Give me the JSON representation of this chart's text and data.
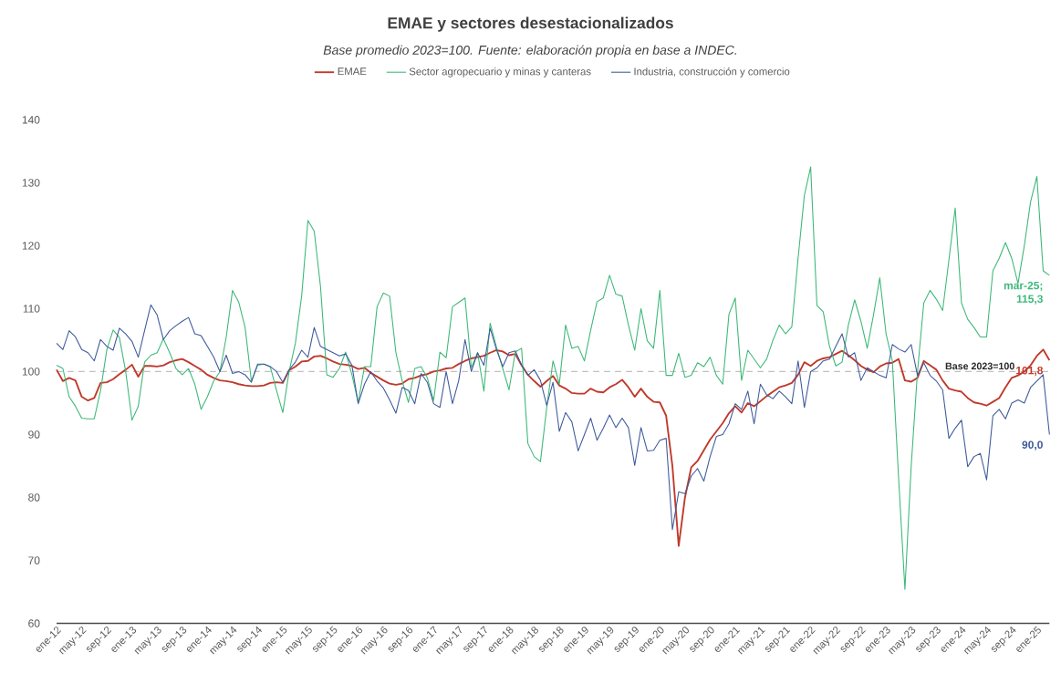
{
  "chart_data": {
    "type": "line",
    "title": "EMAE y sectores desestacionalizados",
    "subtitle": "Base promedio 2023=100. Fuente: elaboración propia en base a INDEC.",
    "categories": [
      "ene-12",
      null,
      null,
      null,
      "may-12",
      null,
      null,
      null,
      "sep-12",
      null,
      null,
      null,
      "ene-13",
      null,
      null,
      null,
      "may-13",
      null,
      null,
      null,
      "sep-13",
      null,
      null,
      null,
      "ene-14",
      null,
      null,
      null,
      "may-14",
      null,
      null,
      null,
      "sep-14",
      null,
      null,
      null,
      "ene-15",
      null,
      null,
      null,
      "may-15",
      null,
      null,
      null,
      "sep-15",
      null,
      null,
      null,
      "ene-16",
      null,
      null,
      null,
      "may-16",
      null,
      null,
      null,
      "sep-16",
      null,
      null,
      null,
      "ene-17",
      null,
      null,
      null,
      "may-17",
      null,
      null,
      null,
      "sep-17",
      null,
      null,
      null,
      "ene-18",
      null,
      null,
      null,
      "may-18",
      null,
      null,
      null,
      "sep-18",
      null,
      null,
      null,
      "ene-19",
      null,
      null,
      null,
      "may-19",
      null,
      null,
      null,
      "sep-19",
      null,
      null,
      null,
      "ene-20",
      null,
      null,
      null,
      "may-20",
      null,
      null,
      null,
      "sep-20",
      null,
      null,
      null,
      "ene-21",
      null,
      null,
      null,
      "may-21",
      null,
      null,
      null,
      "sep-21",
      null,
      null,
      null,
      "ene-22",
      null,
      null,
      null,
      "may-22",
      null,
      null,
      null,
      "sep-22",
      null,
      null,
      null,
      "ene-23",
      null,
      null,
      null,
      "may-23",
      null,
      null,
      null,
      "sep-23",
      null,
      null,
      null,
      "ene-24",
      null,
      null,
      null,
      "may-24",
      null,
      null,
      null,
      "sep-24",
      null,
      null,
      null,
      "ene-25",
      null,
      null
    ],
    "series": [
      {
        "name": "EMAE",
        "color": "#c0392b",
        "values": [
          100.3,
          98.5,
          99.0,
          98.6,
          96.0,
          95.4,
          95.8,
          98.2,
          98.3,
          98.8,
          99.6,
          100.3,
          101.1,
          99.2,
          100.9,
          100.9,
          100.8,
          101.0,
          101.5,
          101.8,
          102.0,
          101.5,
          100.9,
          100.3,
          99.5,
          99.0,
          98.6,
          98.5,
          98.3,
          98.0,
          97.8,
          97.7,
          97.7,
          97.8,
          98.2,
          98.3,
          98.2,
          100.2,
          100.8,
          101.6,
          101.7,
          102.4,
          102.5,
          102.1,
          101.6,
          101.2,
          101.1,
          100.9,
          100.4,
          100.6,
          99.8,
          99.2,
          98.6,
          98.1,
          97.9,
          98.1,
          98.8,
          99.0,
          99.4,
          99.6,
          100.0,
          100.2,
          100.5,
          100.6,
          101.2,
          101.7,
          102.1,
          102.3,
          102.5,
          103.0,
          103.4,
          103.2,
          102.6,
          102.8,
          101.0,
          99.5,
          98.5,
          97.6,
          98.5,
          99.3,
          97.8,
          97.3,
          96.6,
          96.5,
          96.5,
          97.3,
          96.8,
          96.7,
          97.5,
          98.0,
          98.7,
          97.5,
          96.0,
          97.3,
          96.0,
          95.2,
          95.1,
          93.0,
          85.0,
          72.3,
          80.0,
          84.8,
          85.8,
          87.5,
          89.2,
          90.5,
          91.8,
          93.4,
          94.5,
          93.5,
          95.0,
          94.5,
          95.3,
          96.1,
          96.8,
          97.5,
          97.8,
          98.2,
          99.5,
          101.5,
          100.9,
          101.7,
          102.1,
          102.3,
          102.8,
          103.3,
          102.6,
          101.8,
          100.9,
          100.3,
          99.9,
          100.8,
          101.3,
          101.4,
          102.0,
          98.6,
          98.4,
          99.0,
          101.7,
          101.0,
          100.3,
          98.6,
          97.3,
          97.0,
          96.8,
          95.8,
          95.1,
          94.9,
          94.6,
          95.2,
          95.8,
          97.5,
          99.0,
          99.4,
          100.0,
          101.0,
          102.5,
          103.5,
          101.8
        ],
        "value_labels": [
          null,
          null,
          null,
          null,
          null,
          null,
          null,
          null,
          null,
          null,
          null,
          null,
          null,
          null,
          null,
          null,
          null,
          null,
          null,
          null,
          null,
          null,
          null,
          null,
          null,
          null,
          null,
          null,
          null,
          null,
          null,
          null,
          null,
          null,
          null,
          null,
          null,
          null,
          null,
          null,
          null,
          null,
          null,
          null,
          null,
          null,
          null,
          null,
          null,
          null,
          null,
          null,
          null,
          null,
          null,
          null,
          null,
          null,
          null,
          null,
          null,
          null,
          null,
          null,
          null,
          null,
          null,
          null,
          null,
          null,
          null,
          null,
          null,
          null,
          null,
          null,
          null,
          null,
          null,
          null,
          null,
          null,
          null,
          null,
          null,
          null,
          null,
          null,
          null,
          null,
          null,
          null,
          null,
          null,
          null,
          null,
          null,
          null,
          null,
          null,
          null,
          null,
          null,
          null,
          null,
          null,
          null,
          null,
          null,
          null,
          null,
          null,
          null,
          null,
          null,
          null,
          null,
          null,
          null,
          null,
          null,
          null,
          null,
          null,
          null,
          null,
          null,
          null,
          null,
          null,
          null,
          null,
          null,
          null,
          null,
          null,
          null,
          null,
          null,
          null,
          null,
          null,
          null,
          null,
          null,
          null,
          null,
          null,
          null,
          null,
          null,
          null,
          null,
          null,
          null,
          null,
          null,
          null,
          "101,8"
        ]
      },
      {
        "name": "Sector agropecuario y minas y canteras",
        "color": "#3cb878",
        "values": [
          101.0,
          100.5,
          96.0,
          94.5,
          92.6,
          92.5,
          92.5,
          97.0,
          103.5,
          106.6,
          105.4,
          100.0,
          92.3,
          94.5,
          101.5,
          102.6,
          103.0,
          105.2,
          103.0,
          100.5,
          99.5,
          100.5,
          98.0,
          94.0,
          96.0,
          98.5,
          100.0,
          105.5,
          112.9,
          111.0,
          107.0,
          98.5,
          101.0,
          101.2,
          100.8,
          97.0,
          93.5,
          100.0,
          104.5,
          112.0,
          124.0,
          122.3,
          113.5,
          99.5,
          99.1,
          100.5,
          103.1,
          99.5,
          95.1,
          100.8,
          100.8,
          110.3,
          112.5,
          112.0,
          103.0,
          98.5,
          95.1,
          100.5,
          100.8,
          99.0,
          95.4,
          103.1,
          102.2,
          110.3,
          111.0,
          111.7,
          100.6,
          103.0,
          96.9,
          107.7,
          103.9,
          100.5,
          97.1,
          103.1,
          103.7,
          88.6,
          86.5,
          85.7,
          94.3,
          101.7,
          98.0,
          107.4,
          103.7,
          104.0,
          101.7,
          106.6,
          111.1,
          111.7,
          115.3,
          112.3,
          112.0,
          107.4,
          103.4,
          110.0,
          104.9,
          103.7,
          112.9,
          99.4,
          99.4,
          102.9,
          99.1,
          99.4,
          101.4,
          100.8,
          102.3,
          99.4,
          98.0,
          109.1,
          111.7,
          98.6,
          103.4,
          102.0,
          100.6,
          102.0,
          105.0,
          107.4,
          106.0,
          107.1,
          118.0,
          128.0,
          132.5,
          110.5,
          109.5,
          104.0,
          100.9,
          101.5,
          107.4,
          111.4,
          108.0,
          103.7,
          109.0,
          114.9,
          106.0,
          101.7,
          83.0,
          65.4,
          85.0,
          100.0,
          110.9,
          112.9,
          111.5,
          109.7,
          117.7,
          126.0,
          110.9,
          108.3,
          107.0,
          105.5,
          105.5,
          116.0,
          118.0,
          120.5,
          118.0,
          114.0,
          120.0,
          127.0,
          131.0,
          116.0,
          115.3
        ],
        "value_labels": [
          null,
          null,
          null,
          null,
          null,
          null,
          null,
          null,
          null,
          null,
          null,
          null,
          null,
          null,
          null,
          null,
          null,
          null,
          null,
          null,
          null,
          null,
          null,
          null,
          null,
          null,
          null,
          null,
          null,
          null,
          null,
          null,
          null,
          null,
          null,
          null,
          null,
          null,
          null,
          null,
          null,
          null,
          null,
          null,
          null,
          null,
          null,
          null,
          null,
          null,
          null,
          null,
          null,
          null,
          null,
          null,
          null,
          null,
          null,
          null,
          null,
          null,
          null,
          null,
          null,
          null,
          null,
          null,
          null,
          null,
          null,
          null,
          null,
          null,
          null,
          null,
          null,
          null,
          null,
          null,
          null,
          null,
          null,
          null,
          null,
          null,
          null,
          null,
          null,
          null,
          null,
          null,
          null,
          null,
          null,
          null,
          null,
          null,
          null,
          null,
          null,
          null,
          null,
          null,
          null,
          null,
          null,
          null,
          null,
          null,
          null,
          null,
          null,
          null,
          null,
          null,
          null,
          null,
          null,
          null,
          null,
          null,
          null,
          null,
          null,
          null,
          null,
          null,
          null,
          null,
          null,
          null,
          null,
          null,
          null,
          null,
          null,
          null,
          null,
          null,
          null,
          null,
          null,
          null,
          null,
          null,
          null,
          null,
          null,
          null,
          null,
          null,
          null,
          null,
          null,
          null,
          null,
          null,
          "mar-25; 115,3"
        ]
      },
      {
        "name": "Industria, construcción y comercio",
        "color": "#3e5a9a",
        "values": [
          104.5,
          103.5,
          106.5,
          105.5,
          103.5,
          103.0,
          101.7,
          105.1,
          104.0,
          103.4,
          106.9,
          106.0,
          104.8,
          102.3,
          106.5,
          110.6,
          109.0,
          105.1,
          106.5,
          107.3,
          108.0,
          108.6,
          106.0,
          105.7,
          104.0,
          102.3,
          100.0,
          102.6,
          99.7,
          100.0,
          99.5,
          98.3,
          101.2,
          101.2,
          100.8,
          100.0,
          98.3,
          100.3,
          101.5,
          103.4,
          102.3,
          107.0,
          104.0,
          103.5,
          103.0,
          102.5,
          102.8,
          101.0,
          94.9,
          98.0,
          100.0,
          98.5,
          97.4,
          95.5,
          93.4,
          97.5,
          97.0,
          94.9,
          99.7,
          98.3,
          94.9,
          94.3,
          100.0,
          94.9,
          98.6,
          105.1,
          100.0,
          103.0,
          101.0,
          106.9,
          103.5,
          100.8,
          103.0,
          103.3,
          101.0,
          99.4,
          100.3,
          98.6,
          94.6,
          98.3,
          90.5,
          93.5,
          92.0,
          87.4,
          90.0,
          92.6,
          89.1,
          91.0,
          93.1,
          91.1,
          92.6,
          91.1,
          85.1,
          91.1,
          87.4,
          87.5,
          89.1,
          89.4,
          74.9,
          80.9,
          80.6,
          83.4,
          84.6,
          82.6,
          86.5,
          89.7,
          90.0,
          91.7,
          94.9,
          94.0,
          96.9,
          91.7,
          98.0,
          96.3,
          95.7,
          96.9,
          96.0,
          94.9,
          101.7,
          94.3,
          100.0,
          100.6,
          101.7,
          102.0,
          104.0,
          106.0,
          102.3,
          103.0,
          98.6,
          100.6,
          100.0,
          99.4,
          99.0,
          104.3,
          103.6,
          103.1,
          104.3,
          99.4,
          101.4,
          99.4,
          98.5,
          97.1,
          89.4,
          91.0,
          92.3,
          84.9,
          86.5,
          87.0,
          82.8,
          93.0,
          94.0,
          92.5,
          95.0,
          95.5,
          95.0,
          97.5,
          98.5,
          99.5,
          90.0
        ],
        "value_labels": [
          null,
          null,
          null,
          null,
          null,
          null,
          null,
          null,
          null,
          null,
          null,
          null,
          null,
          null,
          null,
          null,
          null,
          null,
          null,
          null,
          null,
          null,
          null,
          null,
          null,
          null,
          null,
          null,
          null,
          null,
          null,
          null,
          null,
          null,
          null,
          null,
          null,
          null,
          null,
          null,
          null,
          null,
          null,
          null,
          null,
          null,
          null,
          null,
          null,
          null,
          null,
          null,
          null,
          null,
          null,
          null,
          null,
          null,
          null,
          null,
          null,
          null,
          null,
          null,
          null,
          null,
          null,
          null,
          null,
          null,
          null,
          null,
          null,
          null,
          null,
          null,
          null,
          null,
          null,
          null,
          null,
          null,
          null,
          null,
          null,
          null,
          null,
          null,
          null,
          null,
          null,
          null,
          null,
          null,
          null,
          null,
          null,
          null,
          null,
          null,
          null,
          null,
          null,
          null,
          null,
          null,
          null,
          null,
          null,
          null,
          null,
          null,
          null,
          null,
          null,
          null,
          null,
          null,
          null,
          null,
          null,
          null,
          null,
          null,
          null,
          null,
          null,
          null,
          null,
          null,
          null,
          null,
          null,
          null,
          null,
          null,
          null,
          null,
          null,
          null,
          null,
          null,
          null,
          null,
          null,
          null,
          null,
          null,
          null,
          null,
          null,
          null,
          null,
          null,
          null,
          null,
          null,
          null,
          "90,0"
        ]
      }
    ],
    "ylim": [
      60,
      140
    ],
    "yticks": [
      60,
      70,
      80,
      90,
      100,
      110,
      120,
      130,
      140
    ],
    "ref_lines": [
      {
        "axis": "y",
        "value": 100,
        "label": "Base 2023=100",
        "color": "#bfbfbf",
        "line_style": "dashed"
      }
    ],
    "legend": "top",
    "line_style": "solid"
  }
}
